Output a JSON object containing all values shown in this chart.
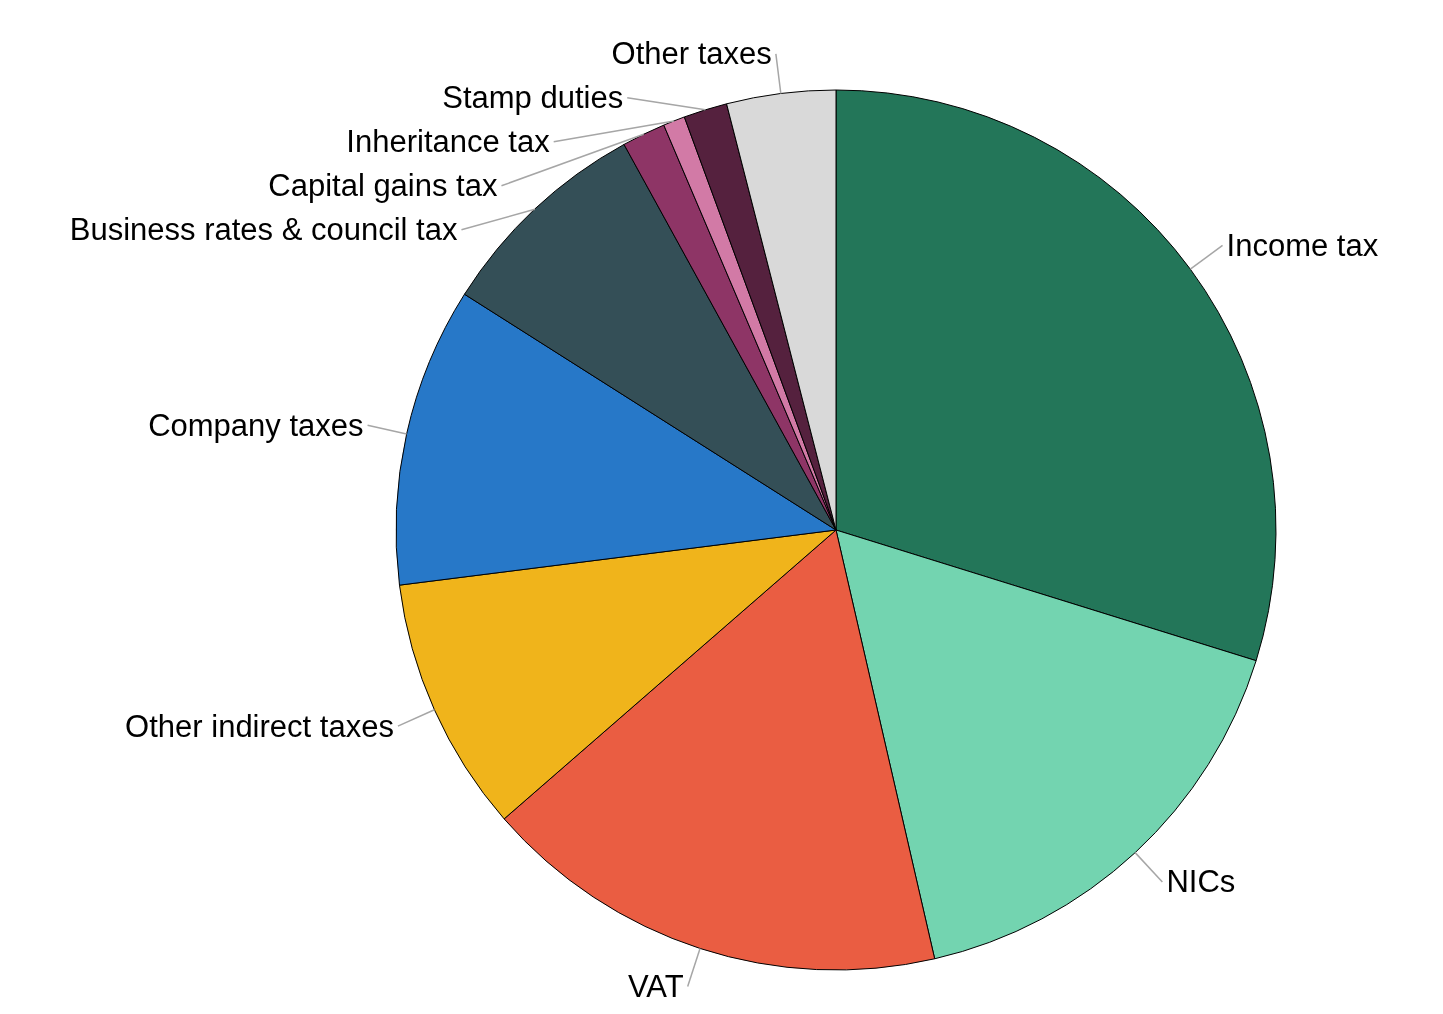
{
  "chart_data": {
    "type": "pie",
    "categories": [
      "Income tax",
      "NICs",
      "VAT",
      "Other indirect taxes",
      "Company taxes",
      "Business rates & council tax",
      "Capital gains tax",
      "Inheritance tax",
      "Stamp duties",
      "Other taxes"
    ],
    "values": [
      29.8,
      16.6,
      17.2,
      9.4,
      11.0,
      8.0,
      1.6,
      0.8,
      1.6,
      4.0
    ],
    "colors": [
      "#237659",
      "#73d4b0",
      "#ea5d42",
      "#f0b41b",
      "#2778c8",
      "#344f57",
      "#8e3566",
      "#d27aa6",
      "#55213e",
      "#d9d9d9"
    ]
  }
}
